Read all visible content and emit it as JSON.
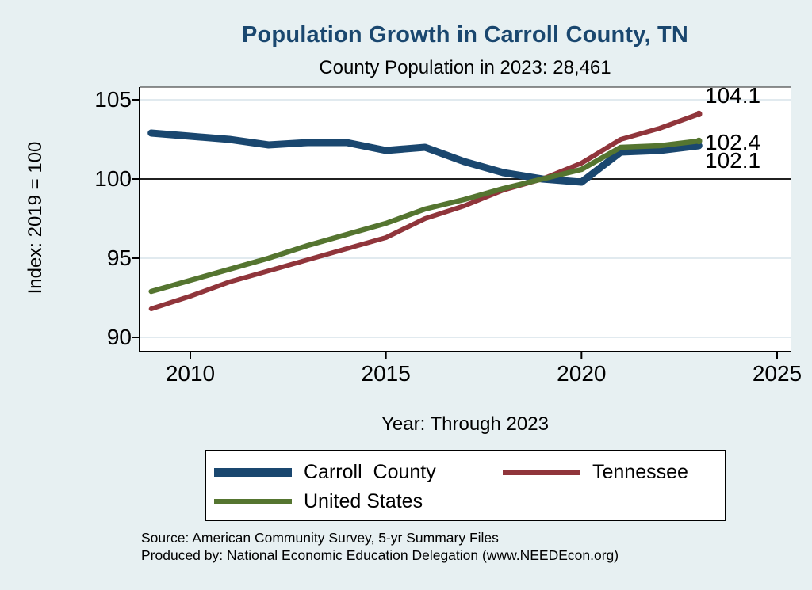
{
  "colors": {
    "background": "#e7f0f2",
    "plot_background": "#ffffff",
    "gridline": "#d7e4ea",
    "axis": "#000000",
    "reference_line": "#000000",
    "title": "#1a476f",
    "carroll_county": "#1a476f",
    "tennessee": "#90353b",
    "united_states": "#557530"
  },
  "source_lines": [
    "Source: American Community Survey, 5-yr Summary Files",
    "Produced by: National Economic Education Delegation (www.NEEDEcon.org)"
  ],
  "chart_data": {
    "type": "line",
    "title": "Population Growth in Carroll County, TN",
    "subtitle": "County Population in 2023: 28,461",
    "xlabel": "Year: Through 2023",
    "ylabel": "Index: 2019 = 100",
    "x": [
      2009,
      2010,
      2011,
      2012,
      2013,
      2014,
      2015,
      2016,
      2017,
      2018,
      2019,
      2020,
      2021,
      2022,
      2023
    ],
    "series": [
      {
        "name": "Carroll  County",
        "color": "#1a476f",
        "values": [
          102.9,
          102.7,
          102.5,
          102.15,
          102.3,
          102.3,
          101.8,
          102.0,
          101.1,
          100.4,
          100.0,
          99.8,
          101.7,
          101.8,
          102.1
        ],
        "end_label": "102.1"
      },
      {
        "name": "Tennessee",
        "color": "#90353b",
        "values": [
          91.8,
          92.6,
          93.5,
          94.2,
          94.9,
          95.6,
          96.3,
          97.5,
          98.3,
          99.3,
          100.0,
          101.0,
          102.5,
          103.2,
          104.1
        ],
        "end_label": "104.1"
      },
      {
        "name": "United States",
        "color": "#557530",
        "values": [
          92.9,
          93.6,
          94.3,
          95.0,
          95.8,
          96.5,
          97.2,
          98.1,
          98.7,
          99.4,
          100.0,
          100.6,
          102.0,
          102.1,
          102.4
        ],
        "end_label": "102.4"
      }
    ],
    "yticks": [
      90,
      95,
      100,
      105
    ],
    "xticks": [
      2010,
      2015,
      2020,
      2025
    ],
    "ylim": [
      89.1,
      105.8
    ],
    "xlim": [
      2008.7,
      2025.35
    ],
    "refline_y": 100,
    "grid": true,
    "legend_position": "bottom"
  }
}
